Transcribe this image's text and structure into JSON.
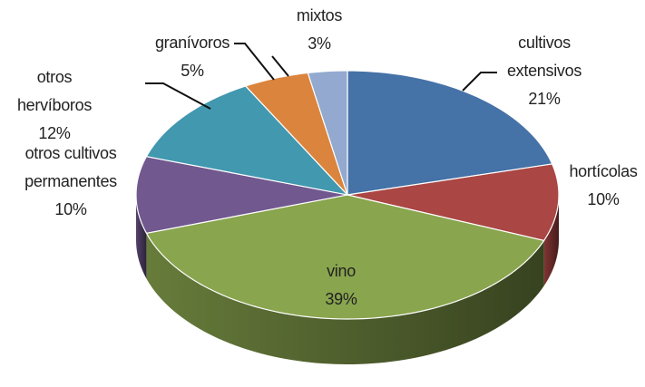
{
  "chart_data": {
    "type": "pie3d",
    "categories": [
      "cultivos\nextensivos",
      "hortícolas",
      "vino",
      "otros cultivos\npermanentes",
      "otros\nhervíboros",
      "granívoros",
      "mixtos"
    ],
    "values": [
      21,
      10,
      39,
      10,
      12,
      5,
      3
    ],
    "value_labels": [
      "21%",
      "10%",
      "39%",
      "10%",
      "12%",
      "5%",
      "3%"
    ],
    "colors": [
      "#4572a7",
      "#aa4643",
      "#89a54e",
      "#71588f",
      "#4198af",
      "#db843d",
      "#93a9cf"
    ]
  }
}
